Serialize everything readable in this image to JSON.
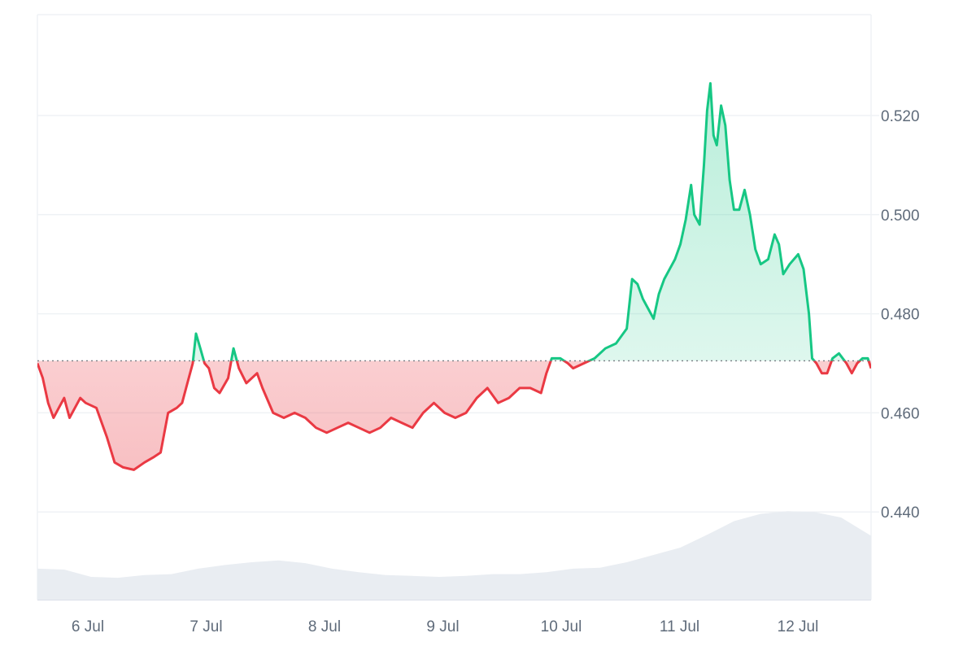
{
  "chart_data": {
    "type": "area",
    "title": "",
    "xlabel": "",
    "ylabel": "",
    "x_ticks": [
      "6 Jul",
      "7 Jul",
      "8 Jul",
      "9 Jul",
      "10 Jul",
      "11 Jul",
      "12 Jul"
    ],
    "y_ticks": [
      "0.440",
      "0.460",
      "0.480",
      "0.500",
      "0.520"
    ],
    "ylim": [
      0.422,
      0.54
    ],
    "baseline": 0.4705,
    "grid": true,
    "legend": "none",
    "colors": {
      "above": "#16c784",
      "below": "#ea3943",
      "above_fill": "#16c784",
      "below_fill": "#ea3943",
      "volume": "#e9edf2",
      "grid": "#eff2f5",
      "baseline": "#7a7f86"
    },
    "series": [
      {
        "values": [
          [
            0,
            0.47
          ],
          [
            0.05,
            0.467
          ],
          [
            0.1,
            0.462
          ],
          [
            0.15,
            0.459
          ],
          [
            0.2,
            0.461
          ],
          [
            0.25,
            0.463
          ],
          [
            0.3,
            0.459
          ],
          [
            0.35,
            0.461
          ],
          [
            0.4,
            0.463
          ],
          [
            0.45,
            0.462
          ],
          [
            0.55,
            0.461
          ],
          [
            0.65,
            0.455
          ],
          [
            0.72,
            0.45
          ],
          [
            0.8,
            0.449
          ],
          [
            0.9,
            0.4485
          ],
          [
            1.0,
            0.45
          ],
          [
            1.08,
            0.451
          ],
          [
            1.15,
            0.452
          ],
          [
            1.22,
            0.46
          ],
          [
            1.3,
            0.461
          ],
          [
            1.35,
            0.462
          ],
          [
            1.4,
            0.466
          ],
          [
            1.45,
            0.47
          ],
          [
            1.48,
            0.476
          ],
          [
            1.52,
            0.473
          ],
          [
            1.56,
            0.47
          ],
          [
            1.6,
            0.469
          ],
          [
            1.65,
            0.465
          ],
          [
            1.7,
            0.464
          ],
          [
            1.78,
            0.467
          ],
          [
            1.83,
            0.473
          ],
          [
            1.88,
            0.469
          ],
          [
            1.95,
            0.466
          ],
          [
            2.0,
            0.467
          ],
          [
            2.05,
            0.468
          ],
          [
            2.1,
            0.465
          ],
          [
            2.2,
            0.46
          ],
          [
            2.3,
            0.459
          ],
          [
            2.4,
            0.46
          ],
          [
            2.5,
            0.459
          ],
          [
            2.6,
            0.457
          ],
          [
            2.7,
            0.456
          ],
          [
            2.8,
            0.457
          ],
          [
            2.9,
            0.458
          ],
          [
            3.0,
            0.457
          ],
          [
            3.1,
            0.456
          ],
          [
            3.2,
            0.457
          ],
          [
            3.3,
            0.459
          ],
          [
            3.4,
            0.458
          ],
          [
            3.5,
            0.457
          ],
          [
            3.6,
            0.46
          ],
          [
            3.7,
            0.462
          ],
          [
            3.8,
            0.46
          ],
          [
            3.9,
            0.459
          ],
          [
            4.0,
            0.46
          ],
          [
            4.1,
            0.463
          ],
          [
            4.2,
            0.465
          ],
          [
            4.3,
            0.462
          ],
          [
            4.4,
            0.463
          ],
          [
            4.5,
            0.465
          ],
          [
            4.6,
            0.465
          ],
          [
            4.7,
            0.464
          ],
          [
            4.75,
            0.468
          ],
          [
            4.8,
            0.471
          ],
          [
            4.88,
            0.471
          ],
          [
            4.95,
            0.47
          ],
          [
            5.0,
            0.469
          ],
          [
            5.1,
            0.47
          ],
          [
            5.2,
            0.471
          ],
          [
            5.3,
            0.473
          ],
          [
            5.4,
            0.474
          ],
          [
            5.5,
            0.477
          ],
          [
            5.55,
            0.487
          ],
          [
            5.6,
            0.486
          ],
          [
            5.65,
            0.483
          ],
          [
            5.7,
            0.481
          ],
          [
            5.75,
            0.479
          ],
          [
            5.8,
            0.484
          ],
          [
            5.85,
            0.487
          ],
          [
            5.9,
            0.489
          ],
          [
            5.95,
            0.491
          ],
          [
            6.0,
            0.494
          ],
          [
            6.05,
            0.499
          ],
          [
            6.1,
            0.506
          ],
          [
            6.13,
            0.5
          ],
          [
            6.18,
            0.498
          ],
          [
            6.22,
            0.51
          ],
          [
            6.25,
            0.521
          ],
          [
            6.28,
            0.5265
          ],
          [
            6.31,
            0.516
          ],
          [
            6.34,
            0.514
          ],
          [
            6.38,
            0.522
          ],
          [
            6.42,
            0.518
          ],
          [
            6.46,
            0.507
          ],
          [
            6.5,
            0.501
          ],
          [
            6.55,
            0.501
          ],
          [
            6.6,
            0.505
          ],
          [
            6.65,
            0.5
          ],
          [
            6.7,
            0.493
          ],
          [
            6.75,
            0.49
          ],
          [
            6.82,
            0.491
          ],
          [
            6.88,
            0.496
          ],
          [
            6.92,
            0.494
          ],
          [
            6.96,
            0.488
          ],
          [
            7.02,
            0.49
          ],
          [
            7.1,
            0.492
          ],
          [
            7.15,
            0.489
          ],
          [
            7.2,
            0.48
          ],
          [
            7.23,
            0.471
          ],
          [
            7.27,
            0.47
          ],
          [
            7.32,
            0.468
          ],
          [
            7.37,
            0.468
          ],
          [
            7.42,
            0.471
          ],
          [
            7.48,
            0.472
          ],
          [
            7.55,
            0.47
          ],
          [
            7.6,
            0.468
          ],
          [
            7.65,
            0.47
          ],
          [
            7.7,
            0.471
          ],
          [
            7.75,
            0.471
          ],
          [
            7.78,
            0.469
          ]
        ]
      }
    ],
    "volume": [
      [
        0,
        0.34
      ],
      [
        0.25,
        0.33
      ],
      [
        0.5,
        0.25
      ],
      [
        0.75,
        0.24
      ],
      [
        1.0,
        0.27
      ],
      [
        1.25,
        0.28
      ],
      [
        1.5,
        0.34
      ],
      [
        1.75,
        0.38
      ],
      [
        2.0,
        0.41
      ],
      [
        2.25,
        0.43
      ],
      [
        2.5,
        0.4
      ],
      [
        2.75,
        0.34
      ],
      [
        3.0,
        0.3
      ],
      [
        3.25,
        0.27
      ],
      [
        3.5,
        0.26
      ],
      [
        3.75,
        0.25
      ],
      [
        4.0,
        0.26
      ],
      [
        4.25,
        0.28
      ],
      [
        4.5,
        0.28
      ],
      [
        4.75,
        0.3
      ],
      [
        5.0,
        0.34
      ],
      [
        5.25,
        0.35
      ],
      [
        5.5,
        0.41
      ],
      [
        5.75,
        0.49
      ],
      [
        6.0,
        0.57
      ],
      [
        6.25,
        0.71
      ],
      [
        6.5,
        0.86
      ],
      [
        6.75,
        0.94
      ],
      [
        7.0,
        0.97
      ],
      [
        7.25,
        0.96
      ],
      [
        7.5,
        0.9
      ],
      [
        7.78,
        0.7
      ]
    ]
  }
}
